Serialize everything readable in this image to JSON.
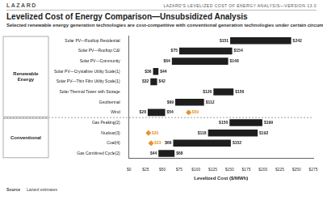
{
  "page": {
    "brand": "LAZARD",
    "report": "LAZARD'S LEVELIZED COST OF ENERGY ANALYSIS—VERSION 13.0",
    "source_label": "Source",
    "source": "Lazard estimates"
  },
  "chart_data": {
    "type": "bar",
    "orientation": "horizontal",
    "title": "Levelized Cost of Energy Comparison—Unsubsidized Analysis",
    "subtitle": "Selected renewable energy generation technologies are cost-competitive with conventional generation technologies under certain circumstances",
    "x_label": "Levelized Cost ($/MWh)",
    "groups": [
      {
        "name": "Renewable Energy",
        "categories": [
          "Solar PV—Rooftop Residential",
          "Solar PV—Rooftop C&I",
          "Solar PV—Community",
          "Solar PV—Crystalline Utility Scale(1)",
          "Solar PV—Thin Film Utility Scale(1)",
          "Solar Thermal Tower with Storage",
          "Geothermal",
          "Wind"
        ]
      },
      {
        "name": "Conventional",
        "categories": [
          "Gas Peaking(2)",
          "Nuclear(3)",
          "Coal(4)",
          "Gas Combined Cycle(2)"
        ]
      }
    ],
    "series": [
      {
        "type": "bar",
        "color": "#1e1e1e",
        "values": [
          [
            151,
            242
          ],
          [
            75,
            154
          ],
          [
            64,
            148
          ],
          [
            36,
            44
          ],
          [
            32,
            42
          ],
          [
            126,
            156
          ],
          [
            69,
            112
          ],
          [
            28,
            54
          ],
          [
            150,
            199
          ],
          [
            118,
            192
          ],
          [
            66,
            152
          ],
          [
            44,
            68
          ]
        ],
        "value_labels": [
          [
            "$151",
            "$242"
          ],
          [
            "$75",
            "$154"
          ],
          [
            "$64",
            "$148"
          ],
          [
            "$36",
            "$44"
          ],
          [
            "$32",
            "$42"
          ],
          [
            "$126",
            "$156"
          ],
          [
            "$69",
            "$112"
          ],
          [
            "$28",
            "$54"
          ],
          [
            "$150",
            "$199"
          ],
          [
            "$118",
            "$192"
          ],
          [
            "$66",
            "$152"
          ],
          [
            "$44",
            "$68"
          ]
        ]
      },
      {
        "type": "scatter",
        "marker": "diamond",
        "color": "#e8912d",
        "values": [
          null,
          null,
          null,
          null,
          null,
          null,
          null,
          89,
          null,
          29,
          33,
          null
        ],
        "value_labels": [
          null,
          null,
          null,
          null,
          null,
          null,
          null,
          "$89",
          null,
          "$29",
          "$33",
          null
        ]
      }
    ],
    "xlim": [
      0,
      275
    ],
    "xticks": [
      {
        "value": 0,
        "label": "$0"
      },
      {
        "value": 25,
        "label": "$25"
      },
      {
        "value": 50,
        "label": "$50"
      },
      {
        "value": 75,
        "label": "$75"
      },
      {
        "value": 100,
        "label": "$100"
      },
      {
        "value": 125,
        "label": "$125"
      },
      {
        "value": 150,
        "label": "$150"
      },
      {
        "value": 175,
        "label": "$175"
      },
      {
        "value": 200,
        "label": "$200"
      },
      {
        "value": 225,
        "label": "$225"
      },
      {
        "value": 250,
        "label": "$250"
      },
      {
        "value": 275,
        "label": "$275"
      }
    ],
    "grid": false,
    "data_labels": true
  }
}
